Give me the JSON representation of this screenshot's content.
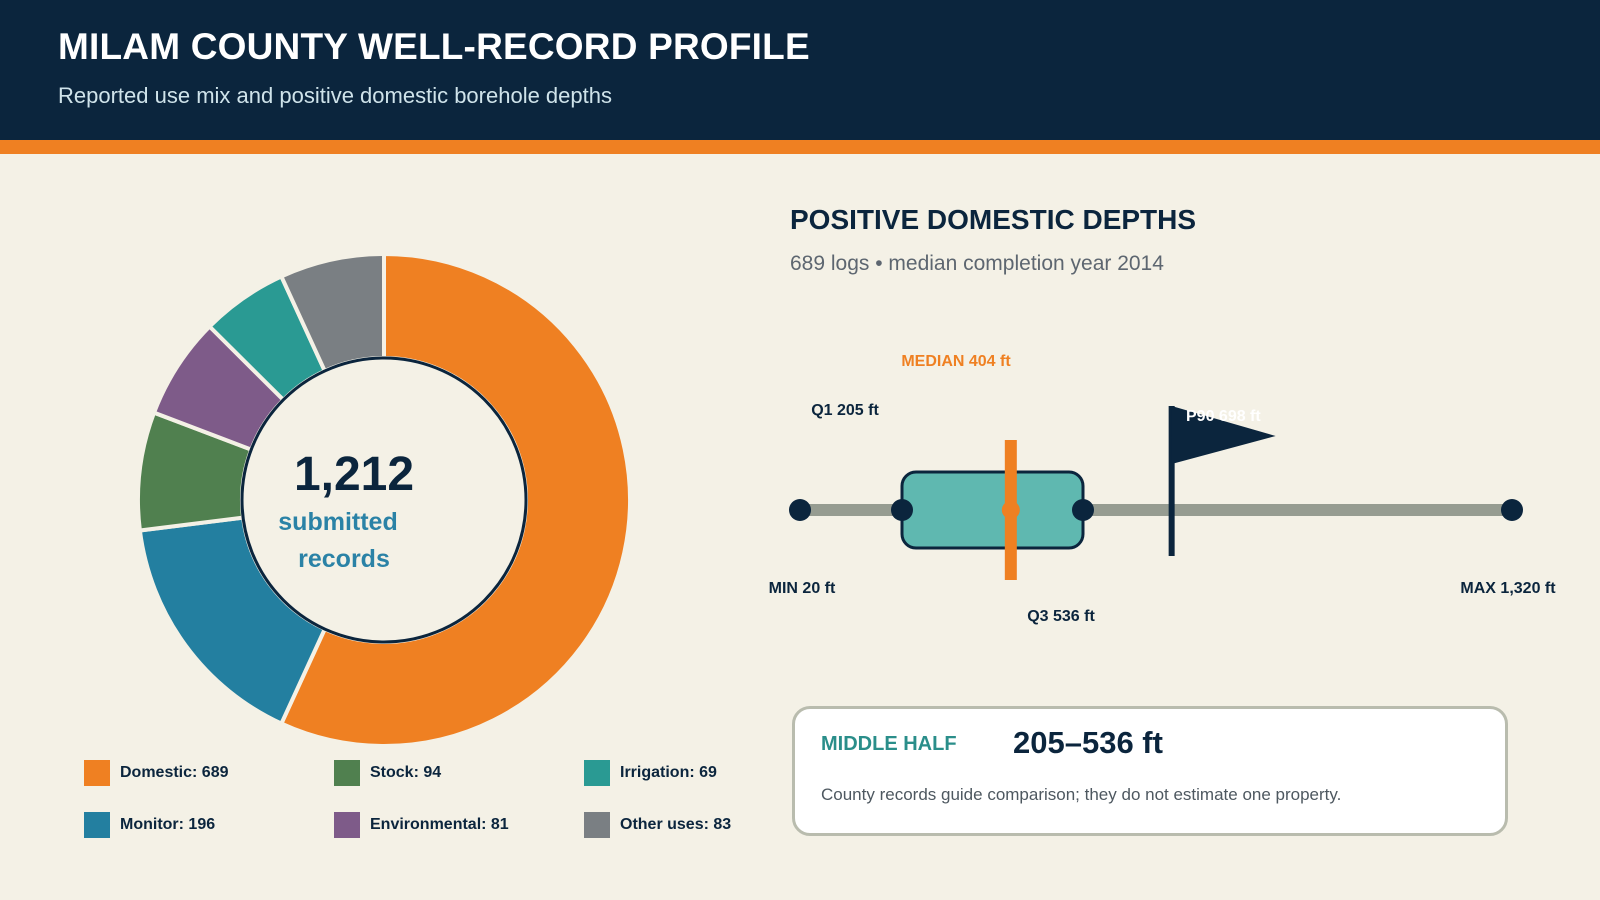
{
  "header": {
    "title": "MILAM COUNTY WELL-RECORD PROFILE",
    "subtitle": "Reported use mix and positive domestic borehole depths"
  },
  "colors": {
    "header_bg": "#0b253d",
    "accent": "#ef8022",
    "background": "#f4f1e6",
    "domestic": "#ef8022",
    "monitor": "#237fa0",
    "stock": "#50804f",
    "environmental": "#7e5b89",
    "irrigation": "#2a9a93",
    "other": "#7a7f83",
    "box_fill": "#5fb8b0",
    "whisker": "#969c91"
  },
  "chart_data": [
    {
      "type": "pie",
      "variant": "donut",
      "center": {
        "value": "1,212",
        "label_line1": "submitted",
        "label_line2": "records"
      },
      "slices": [
        {
          "name": "Domestic",
          "value": 689,
          "label": "Domestic: 689",
          "color": "#ef8022"
        },
        {
          "name": "Monitor",
          "value": 196,
          "label": "Monitor: 196",
          "color": "#237fa0"
        },
        {
          "name": "Stock",
          "value": 94,
          "label": "Stock: 94",
          "color": "#50804f"
        },
        {
          "name": "Environmental",
          "value": 81,
          "label": "Environmental: 81",
          "color": "#7e5b89"
        },
        {
          "name": "Irrigation",
          "value": 69,
          "label": "Irrigation: 69",
          "color": "#2a9a93"
        },
        {
          "name": "Other uses",
          "value": 83,
          "label": "Other uses: 83",
          "color": "#7a7f83"
        }
      ],
      "legend_order": [
        "Domestic",
        "Stock",
        "Irrigation",
        "Monitor",
        "Environmental",
        "Other uses"
      ],
      "legend_position": "bottom"
    },
    {
      "type": "box",
      "title": "POSITIVE DOMESTIC DEPTHS",
      "subtitle": "689 logs • median completion year 2014",
      "unit": "ft",
      "stats": {
        "min": 20,
        "q1": 205,
        "median": 404,
        "q3": 536,
        "p90": 698,
        "max": 1320
      },
      "labels": {
        "min": "MIN 20 ft",
        "q1": "Q1 205 ft",
        "median": "MEDIAN 404 ft",
        "q3": "Q3 536 ft",
        "p90": "P90  698 ft",
        "max": "MAX 1,320 ft"
      }
    }
  ],
  "middle_half": {
    "label": "MIDDLE HALF",
    "value": "205–536 ft",
    "note": "County records guide comparison; they do not estimate one property."
  }
}
